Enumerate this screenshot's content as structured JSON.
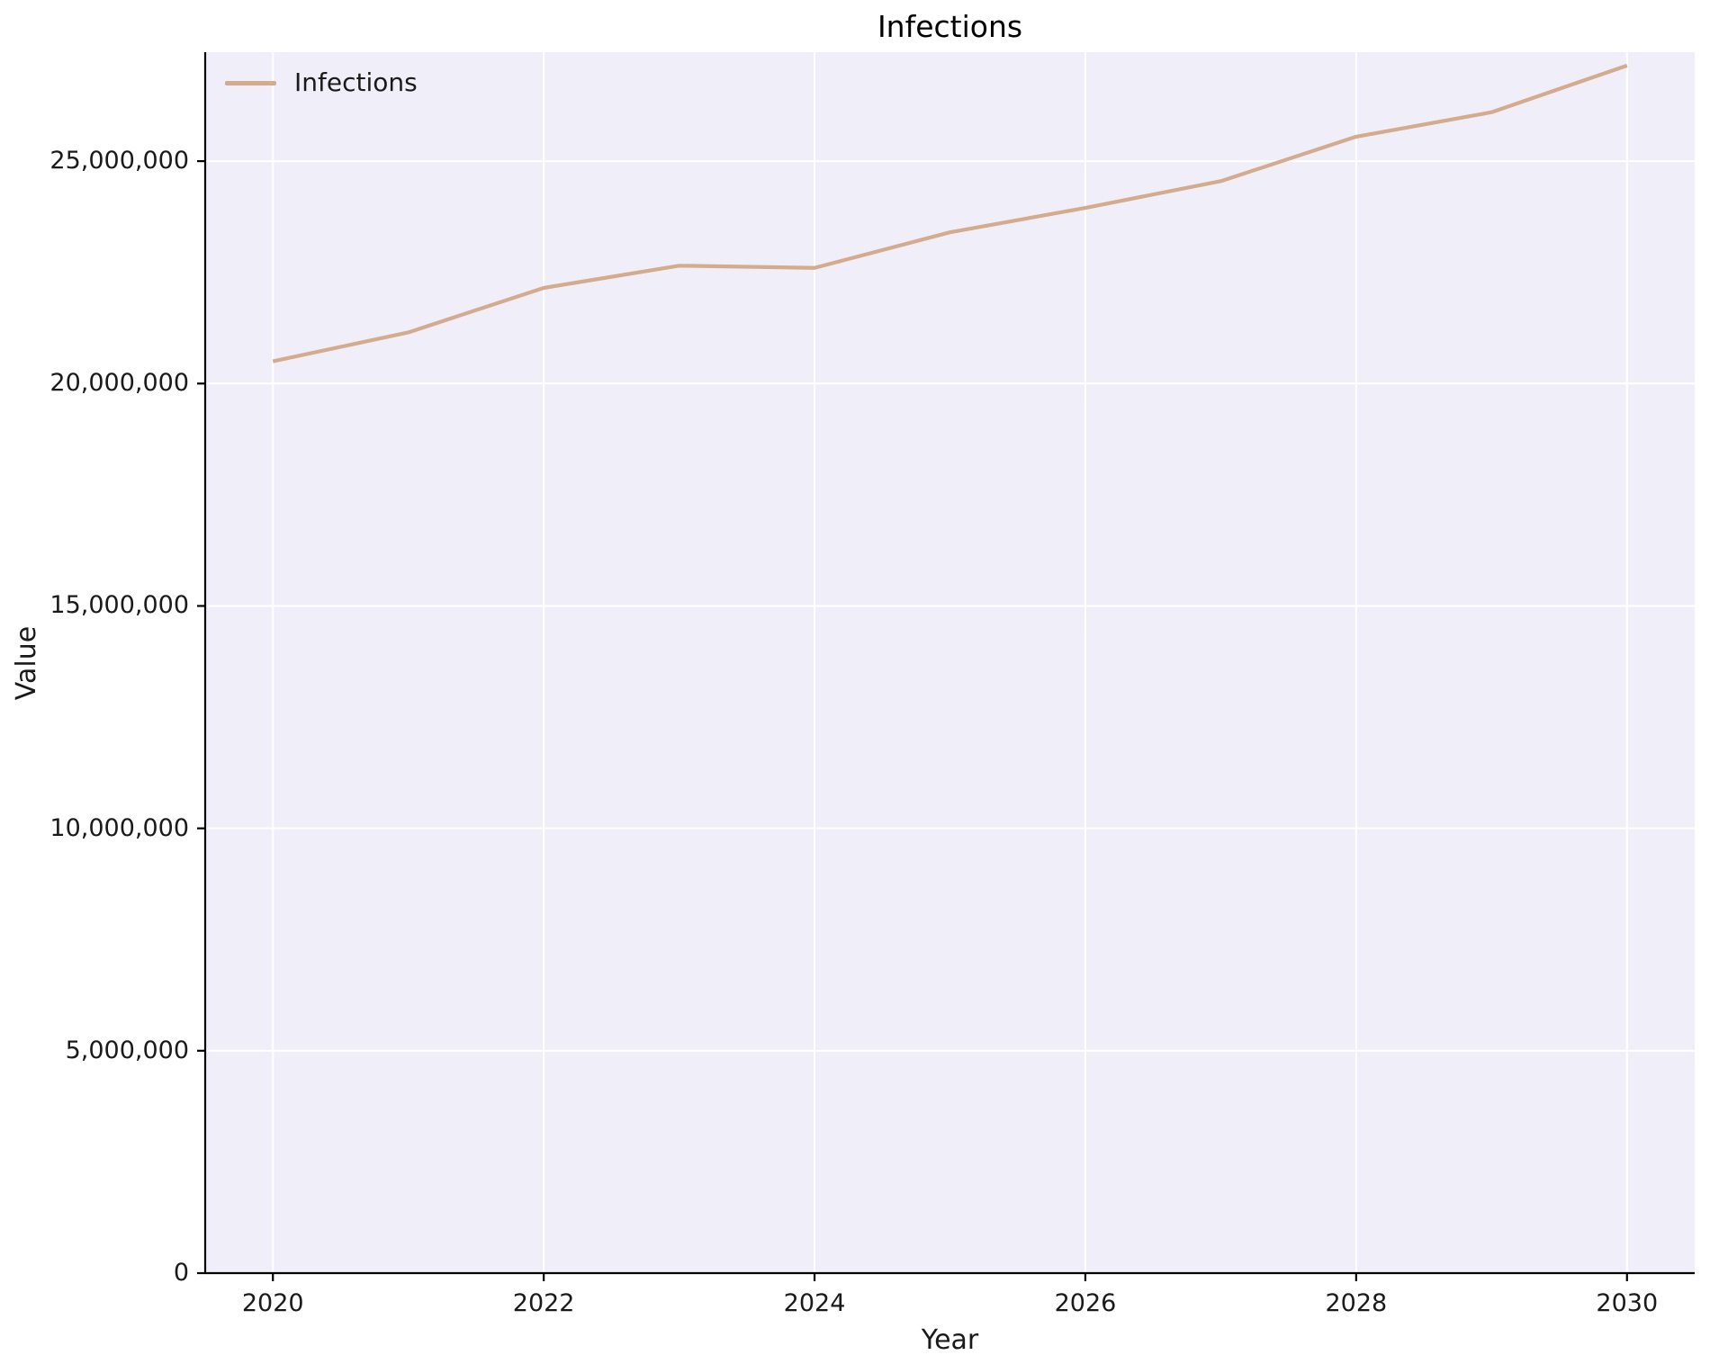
{
  "chart_data": {
    "type": "line",
    "title": "Infections",
    "xlabel": "Year",
    "ylabel": "Value",
    "x": [
      2020,
      2021,
      2022,
      2023,
      2024,
      2025,
      2026,
      2027,
      2028,
      2029,
      2030
    ],
    "series": [
      {
        "name": "Infections",
        "color": "#d5ab8d",
        "values": [
          20500000,
          21150000,
          22150000,
          22650000,
          22600000,
          23400000,
          23950000,
          24550000,
          25550000,
          26100000,
          27150000
        ]
      }
    ],
    "xlim": [
      2019.5,
      2030.5
    ],
    "ylim": [
      0,
      27450000
    ],
    "x_ticks": [
      2020,
      2022,
      2024,
      2026,
      2028,
      2030
    ],
    "x_tick_labels": [
      "2020",
      "2022",
      "2024",
      "2026",
      "2028",
      "2030"
    ],
    "y_ticks": [
      0,
      5000000,
      10000000,
      15000000,
      20000000,
      25000000
    ],
    "y_tick_labels": [
      "0",
      "5,000,000",
      "10,000,000",
      "15,000,000",
      "20,000,000",
      "25,000,000"
    ],
    "grid": true,
    "legend": {
      "position": "upper left",
      "entries": [
        "Infections"
      ]
    },
    "colors": {
      "figure_bg": "#ffffff",
      "plot_bg": "#f0eff9",
      "grid": "#ffffff",
      "spine": "#000000",
      "text": "#1a1a1a"
    }
  }
}
